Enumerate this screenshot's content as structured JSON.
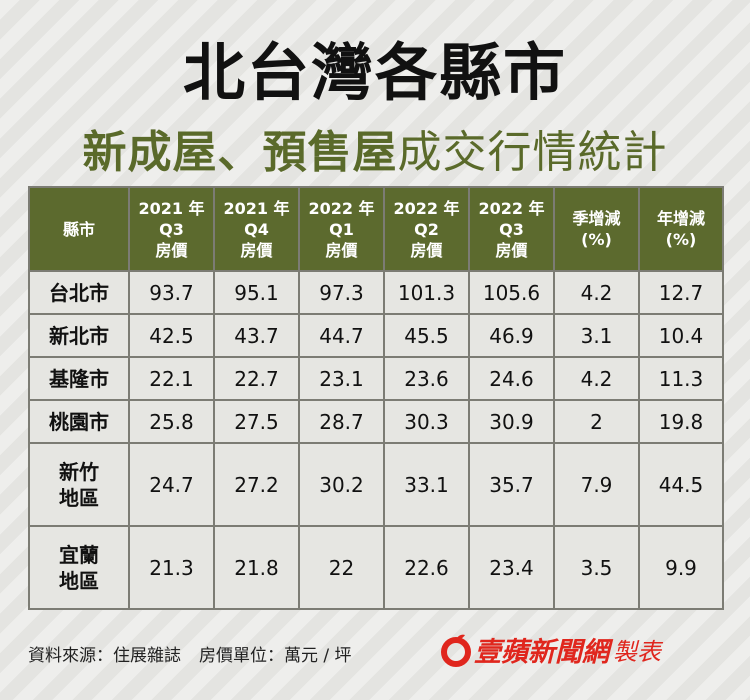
{
  "header": {
    "title": "北台灣各縣市",
    "subtitle_bold": "新成屋、預售屋",
    "subtitle_light": "成交行情統計"
  },
  "table": {
    "columns": [
      "縣市",
      "2021 年\nQ3\n房價",
      "2021 年\nQ4\n房價",
      "2022 年\nQ1\n房價",
      "2022 年\nQ2\n房價",
      "2022 年\nQ3\n房價",
      "季增減\n(%)",
      "年增減\n(%)"
    ],
    "rows": [
      [
        "台北市",
        93.7,
        95.1,
        97.3,
        101.3,
        105.6,
        4.2,
        12.7
      ],
      [
        "新北市",
        42.5,
        43.7,
        44.7,
        45.5,
        46.9,
        3.1,
        10.4
      ],
      [
        "基隆市",
        22.1,
        22.7,
        23.1,
        23.6,
        24.6,
        4.2,
        11.3
      ],
      [
        "桃園市",
        25.8,
        27.5,
        28.7,
        30.3,
        30.9,
        2,
        19.8
      ],
      [
        "新竹\n地區",
        24.7,
        27.2,
        30.2,
        33.1,
        35.7,
        7.9,
        44.5
      ],
      [
        "宜蘭\n地區",
        21.3,
        21.8,
        22,
        22.6,
        23.4,
        3.5,
        9.9
      ]
    ]
  },
  "footer": {
    "source": "資料來源：住展雜誌",
    "unit": "房價單位：萬元 / 坪",
    "brand": "壹蘋新聞網",
    "made": "製表"
  }
}
